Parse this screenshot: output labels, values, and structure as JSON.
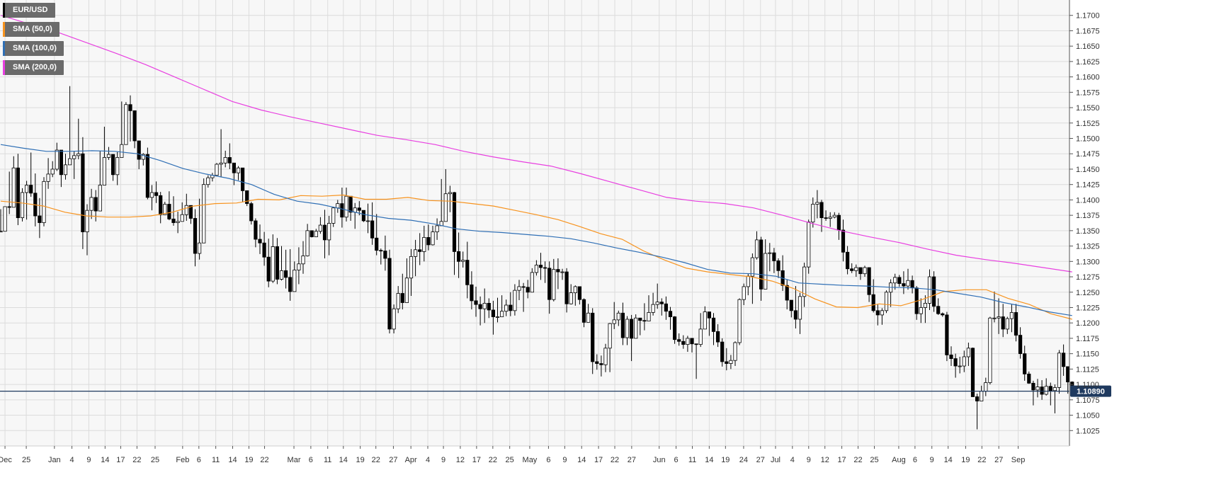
{
  "legend": {
    "symbol": "EUR/USD",
    "sma50": "SMA (50,0)",
    "sma100": "SMA (100,0)",
    "sma200": "SMA (200,0)"
  },
  "colors": {
    "background": "#f7f7f7",
    "grid": "#dcdcdc",
    "bull_body": "#ffffff",
    "bear_body": "#000000",
    "candle_outline": "#000000",
    "sma50": "#f7931e",
    "sma100": "#2f6fb5",
    "sma200": "#e83fe0",
    "price_line": "#1f3a5f"
  },
  "chart_data": {
    "type": "candlestick",
    "symbol": "EUR/USD",
    "y_range": [
      1.1,
      1.1725
    ],
    "y_ticks": [
      "1.1700",
      "1.1675",
      "1.1650",
      "1.1625",
      "1.1600",
      "1.1575",
      "1.1550",
      "1.1525",
      "1.1500",
      "1.1475",
      "1.1450",
      "1.1425",
      "1.1400",
      "1.1375",
      "1.1350",
      "1.1325",
      "1.1300",
      "1.1275",
      "1.1250",
      "1.1225",
      "1.1200",
      "1.1175",
      "1.1150",
      "1.1125",
      "1.1100",
      "1.1075",
      "1.1050",
      "1.1025"
    ],
    "x_labels": [
      "Dec",
      "25",
      "Jan",
      "4",
      "9",
      "14",
      "17",
      "22",
      "25",
      "Feb",
      "6",
      "11",
      "14",
      "19",
      "22",
      "Mar",
      "6",
      "11",
      "14",
      "19",
      "22",
      "27",
      "Apr",
      "4",
      "9",
      "12",
      "17",
      "22",
      "25",
      "May",
      "6",
      "9",
      "14",
      "17",
      "22",
      "27",
      "Jun",
      "6",
      "11",
      "14",
      "19",
      "24",
      "27",
      "Jul",
      "4",
      "9",
      "12",
      "17",
      "22",
      "25",
      "Aug",
      "6",
      "9",
      "14",
      "19",
      "22",
      "27",
      "Sep"
    ],
    "last_price": "1.10890",
    "candles": [
      [
        1.1385,
        1.1378,
        1.1349
      ],
      [
        1.1382,
        1.1368,
        1.1389
      ],
      [
        1.1446,
        1.1377,
        1.1388
      ],
      [
        1.1471,
        1.1388,
        1.1452
      ],
      [
        1.1475,
        1.1359,
        1.1371
      ],
      [
        1.1419,
        1.1365,
        1.1412
      ],
      [
        1.1431,
        1.1368,
        1.1424
      ],
      [
        1.1477,
        1.1405,
        1.1411
      ],
      [
        1.1443,
        1.1357,
        1.1374
      ],
      [
        1.1403,
        1.1338,
        1.1363
      ],
      [
        1.1437,
        1.1357,
        1.143
      ],
      [
        1.1468,
        1.1418,
        1.1442
      ],
      [
        1.1463,
        1.1437,
        1.145
      ],
      [
        1.1493,
        1.1447,
        1.1481
      ],
      [
        1.1465,
        1.1421,
        1.1441
      ],
      [
        1.1475,
        1.1433,
        1.1457
      ],
      [
        1.1585,
        1.1462,
        1.1467
      ],
      [
        1.1479,
        1.1434,
        1.1472
      ],
      [
        1.1532,
        1.1466,
        1.1475
      ],
      [
        1.1502,
        1.132,
        1.1348
      ],
      [
        1.1393,
        1.131,
        1.1383
      ],
      [
        1.1418,
        1.1369,
        1.1404
      ],
      [
        1.1416,
        1.1365,
        1.1382
      ],
      [
        1.148,
        1.142,
        1.1424
      ],
      [
        1.1519,
        1.1444,
        1.1469
      ],
      [
        1.1486,
        1.1465,
        1.1474
      ],
      [
        1.1473,
        1.1431,
        1.1441
      ],
      [
        1.1478,
        1.1424,
        1.1469
      ],
      [
        1.156,
        1.1471,
        1.149
      ],
      [
        1.1559,
        1.1538,
        1.1555
      ],
      [
        1.157,
        1.1495,
        1.1545
      ],
      [
        1.1541,
        1.1484,
        1.1496
      ],
      [
        1.1496,
        1.145,
        1.1466
      ],
      [
        1.1476,
        1.1456,
        1.1474
      ],
      [
        1.1485,
        1.1401,
        1.1404
      ],
      [
        1.1424,
        1.1383,
        1.1412
      ],
      [
        1.143,
        1.1395,
        1.1407
      ],
      [
        1.1413,
        1.1362,
        1.1376
      ],
      [
        1.1397,
        1.1378,
        1.1393
      ],
      [
        1.1414,
        1.1367,
        1.1369
      ],
      [
        1.1406,
        1.1358,
        1.1363
      ],
      [
        1.1381,
        1.1346,
        1.1365
      ],
      [
        1.1396,
        1.1368,
        1.1376
      ],
      [
        1.141,
        1.1366,
        1.1391
      ],
      [
        1.1388,
        1.1361,
        1.137
      ],
      [
        1.1385,
        1.1292,
        1.1313
      ],
      [
        1.1402,
        1.1303,
        1.133
      ],
      [
        1.1435,
        1.138,
        1.1425
      ],
      [
        1.144,
        1.142,
        1.1436
      ],
      [
        1.1444,
        1.143,
        1.144
      ],
      [
        1.146,
        1.145,
        1.1458
      ],
      [
        1.1515,
        1.1437,
        1.146
      ],
      [
        1.148,
        1.1453,
        1.1469
      ],
      [
        1.1492,
        1.145,
        1.146
      ],
      [
        1.1451,
        1.1424,
        1.1444
      ],
      [
        1.1455,
        1.1432,
        1.1452
      ],
      [
        1.1439,
        1.1396,
        1.1415
      ],
      [
        1.1413,
        1.139,
        1.1394
      ],
      [
        1.1397,
        1.136,
        1.1366
      ],
      [
        1.137,
        1.1323,
        1.1336
      ],
      [
        1.136,
        1.1312,
        1.133
      ],
      [
        1.1348,
        1.1293,
        1.1307
      ],
      [
        1.1337,
        1.1258,
        1.1268
      ],
      [
        1.1344,
        1.1265,
        1.1324
      ],
      [
        1.1338,
        1.1263,
        1.1271
      ],
      [
        1.1325,
        1.1269,
        1.1285
      ],
      [
        1.1319,
        1.1256,
        1.1274
      ],
      [
        1.132,
        1.1236,
        1.1251
      ],
      [
        1.13,
        1.1256,
        1.1286
      ],
      [
        1.1323,
        1.1263,
        1.1296
      ],
      [
        1.1333,
        1.128,
        1.1309
      ],
      [
        1.1361,
        1.1308,
        1.135
      ],
      [
        1.1346,
        1.1339,
        1.134
      ],
      [
        1.1353,
        1.134,
        1.1349
      ],
      [
        1.1372,
        1.1345,
        1.1359
      ],
      [
        1.1384,
        1.1305,
        1.1335
      ],
      [
        1.1374,
        1.131,
        1.1362
      ],
      [
        1.1389,
        1.1356,
        1.1387
      ],
      [
        1.14,
        1.1379,
        1.1394
      ],
      [
        1.142,
        1.1355,
        1.1372
      ],
      [
        1.142,
        1.1365,
        1.1406
      ],
      [
        1.1406,
        1.1366,
        1.138
      ],
      [
        1.1395,
        1.1353,
        1.1387
      ],
      [
        1.1398,
        1.1375,
        1.1383
      ],
      [
        1.138,
        1.1364,
        1.1366
      ],
      [
        1.1394,
        1.1346,
        1.1366
      ],
      [
        1.1396,
        1.1327,
        1.1338
      ],
      [
        1.1377,
        1.131,
        1.1318
      ],
      [
        1.1321,
        1.1295,
        1.1317
      ],
      [
        1.1342,
        1.1285,
        1.1305
      ],
      [
        1.1319,
        1.1183,
        1.119
      ],
      [
        1.123,
        1.1183,
        1.1223
      ],
      [
        1.126,
        1.1216,
        1.1248
      ],
      [
        1.128,
        1.1222,
        1.1233
      ],
      [
        1.1305,
        1.1238,
        1.1273
      ],
      [
        1.132,
        1.1244,
        1.1308
      ],
      [
        1.1335,
        1.1276,
        1.1319
      ],
      [
        1.1346,
        1.1294,
        1.1316
      ],
      [
        1.1358,
        1.13,
        1.1339
      ],
      [
        1.136,
        1.1318,
        1.1327
      ],
      [
        1.1358,
        1.1326,
        1.1348
      ],
      [
        1.137,
        1.1335,
        1.1358
      ],
      [
        1.1434,
        1.1358,
        1.1365
      ],
      [
        1.145,
        1.1395,
        1.141
      ],
      [
        1.1423,
        1.138,
        1.1412
      ],
      [
        1.1413,
        1.1278,
        1.1316
      ],
      [
        1.1347,
        1.1273,
        1.13
      ],
      [
        1.1316,
        1.129,
        1.1302
      ],
      [
        1.1332,
        1.124,
        1.1262
      ],
      [
        1.1284,
        1.1222,
        1.1236
      ],
      [
        1.1259,
        1.121,
        1.123
      ],
      [
        1.1243,
        1.1196,
        1.1223
      ],
      [
        1.1256,
        1.12,
        1.1232
      ],
      [
        1.124,
        1.1208,
        1.1221
      ],
      [
        1.1236,
        1.1181,
        1.121
      ],
      [
        1.1241,
        1.1201,
        1.121
      ],
      [
        1.1245,
        1.121,
        1.1219
      ],
      [
        1.1238,
        1.1211,
        1.1229
      ],
      [
        1.125,
        1.1211,
        1.122
      ],
      [
        1.1263,
        1.1212,
        1.1253
      ],
      [
        1.127,
        1.1237,
        1.1259
      ],
      [
        1.1265,
        1.1218,
        1.1258
      ],
      [
        1.127,
        1.124,
        1.125
      ],
      [
        1.1289,
        1.1262,
        1.1282
      ],
      [
        1.1302,
        1.1277,
        1.1294
      ],
      [
        1.1314,
        1.127,
        1.129
      ],
      [
        1.13,
        1.1265,
        1.1289
      ],
      [
        1.13,
        1.1215,
        1.1238
      ],
      [
        1.1304,
        1.1235,
        1.1287
      ],
      [
        1.1305,
        1.1255,
        1.1283
      ],
      [
        1.1288,
        1.127,
        1.1283
      ],
      [
        1.1289,
        1.1217,
        1.1231
      ],
      [
        1.1263,
        1.123,
        1.1249
      ],
      [
        1.1261,
        1.1228,
        1.1259
      ],
      [
        1.1258,
        1.123,
        1.1238
      ],
      [
        1.124,
        1.1193,
        1.1201
      ],
      [
        1.1231,
        1.1208,
        1.1216
      ],
      [
        1.1224,
        1.1117,
        1.1137
      ],
      [
        1.1149,
        1.1124,
        1.1134
      ],
      [
        1.1147,
        1.1113,
        1.1132
      ],
      [
        1.1166,
        1.112,
        1.1159
      ],
      [
        1.12,
        1.112,
        1.1199
      ],
      [
        1.1234,
        1.119,
        1.1205
      ],
      [
        1.122,
        1.1195,
        1.1216
      ],
      [
        1.1233,
        1.1164,
        1.1176
      ],
      [
        1.1211,
        1.1164,
        1.1206
      ],
      [
        1.1213,
        1.1138,
        1.1175
      ],
      [
        1.1214,
        1.1176,
        1.1208
      ],
      [
        1.1207,
        1.118,
        1.1204
      ],
      [
        1.1232,
        1.1188,
        1.1203
      ],
      [
        1.1245,
        1.1206,
        1.1217
      ],
      [
        1.1249,
        1.1212,
        1.123
      ],
      [
        1.1264,
        1.1223,
        1.1234
      ],
      [
        1.124,
        1.1212,
        1.1231
      ],
      [
        1.1243,
        1.1205,
        1.1219
      ],
      [
        1.1226,
        1.1189,
        1.121
      ],
      [
        1.1211,
        1.1166,
        1.1173
      ],
      [
        1.1183,
        1.1163,
        1.117
      ],
      [
        1.118,
        1.1158,
        1.1165
      ],
      [
        1.1179,
        1.1153,
        1.1175
      ],
      [
        1.1171,
        1.1152,
        1.1166
      ],
      [
        1.1166,
        1.1109,
        1.1165
      ],
      [
        1.1216,
        1.1161,
        1.119
      ],
      [
        1.1227,
        1.1193,
        1.1218
      ],
      [
        1.1218,
        1.1179,
        1.1208
      ],
      [
        1.1216,
        1.1164,
        1.1186
      ],
      [
        1.1198,
        1.1161,
        1.1169
      ],
      [
        1.1175,
        1.1129,
        1.1137
      ],
      [
        1.1159,
        1.1123,
        1.1134
      ],
      [
        1.1148,
        1.1125,
        1.1139
      ],
      [
        1.117,
        1.113,
        1.1168
      ],
      [
        1.124,
        1.1164,
        1.1238
      ],
      [
        1.1264,
        1.1229,
        1.1259
      ],
      [
        1.128,
        1.1245,
        1.1276
      ],
      [
        1.1313,
        1.1231,
        1.1306
      ],
      [
        1.1349,
        1.1303,
        1.1335
      ],
      [
        1.134,
        1.1236,
        1.1255
      ],
      [
        1.1336,
        1.1255,
        1.1313
      ],
      [
        1.133,
        1.1284,
        1.1314
      ],
      [
        1.1322,
        1.1281,
        1.1301
      ],
      [
        1.1305,
        1.1273,
        1.1285
      ],
      [
        1.131,
        1.1252,
        1.1261
      ],
      [
        1.127,
        1.1222,
        1.1237
      ],
      [
        1.1232,
        1.1209,
        1.122
      ],
      [
        1.126,
        1.1191,
        1.1206
      ],
      [
        1.1249,
        1.1182,
        1.1243
      ],
      [
        1.1298,
        1.1226,
        1.1291
      ],
      [
        1.1368,
        1.128,
        1.1364
      ],
      [
        1.1404,
        1.1355,
        1.1393
      ],
      [
        1.1416,
        1.137,
        1.1396
      ],
      [
        1.14,
        1.1348,
        1.1371
      ],
      [
        1.1383,
        1.1366,
        1.137
      ],
      [
        1.138,
        1.1356,
        1.1372
      ],
      [
        1.138,
        1.137,
        1.1375
      ],
      [
        1.1379,
        1.1335,
        1.1351
      ],
      [
        1.1368,
        1.13,
        1.1315
      ],
      [
        1.1325,
        1.1279,
        1.1288
      ],
      [
        1.1297,
        1.1281,
        1.1285
      ],
      [
        1.1295,
        1.1275,
        1.129
      ],
      [
        1.129,
        1.127,
        1.128
      ],
      [
        1.1293,
        1.1275,
        1.129
      ],
      [
        1.1286,
        1.1234,
        1.1246
      ],
      [
        1.1271,
        1.1217,
        1.122
      ],
      [
        1.123,
        1.1196,
        1.1213
      ],
      [
        1.1224,
        1.1197,
        1.122
      ],
      [
        1.1253,
        1.1216,
        1.125
      ],
      [
        1.1271,
        1.1226,
        1.1265
      ],
      [
        1.128,
        1.1254,
        1.1274
      ],
      [
        1.1278,
        1.1259,
        1.1264
      ],
      [
        1.1284,
        1.1247,
        1.126
      ],
      [
        1.1288,
        1.1254,
        1.1269
      ],
      [
        1.1277,
        1.1248,
        1.1257
      ],
      [
        1.126,
        1.1205,
        1.1215
      ],
      [
        1.124,
        1.12,
        1.1225
      ],
      [
        1.1245,
        1.12,
        1.1232
      ],
      [
        1.1287,
        1.1221,
        1.1275
      ],
      [
        1.1284,
        1.1218,
        1.1227
      ],
      [
        1.124,
        1.1213,
        1.1215
      ],
      [
        1.1217,
        1.121,
        1.1213
      ],
      [
        1.1218,
        1.1138,
        1.1148
      ],
      [
        1.1162,
        1.113,
        1.1142
      ],
      [
        1.115,
        1.1111,
        1.113
      ],
      [
        1.1145,
        1.1118,
        1.113
      ],
      [
        1.1155,
        1.112,
        1.1145
      ],
      [
        1.1168,
        1.113,
        1.1159
      ],
      [
        1.116,
        1.1081,
        1.108
      ],
      [
        1.1085,
        1.1027,
        1.1073
      ],
      [
        1.1098,
        1.1076,
        1.1089
      ],
      [
        1.1111,
        1.1081,
        1.1103
      ],
      [
        1.121,
        1.11,
        1.1208
      ],
      [
        1.1251,
        1.1201,
        1.1208
      ],
      [
        1.124,
        1.1182,
        1.121
      ],
      [
        1.1231,
        1.1177,
        1.119
      ],
      [
        1.121,
        1.1182,
        1.1207
      ],
      [
        1.123,
        1.1185,
        1.1217
      ],
      [
        1.1231,
        1.117,
        1.118
      ],
      [
        1.1193,
        1.1142,
        1.115
      ],
      [
        1.1163,
        1.1106,
        1.1117
      ],
      [
        1.1121,
        1.1101,
        1.1102
      ],
      [
        1.1106,
        1.1066,
        1.1091
      ],
      [
        1.1109,
        1.1079,
        1.1096
      ],
      [
        1.1107,
        1.1075,
        1.1084
      ],
      [
        1.111,
        1.1082,
        1.1097
      ],
      [
        1.1103,
        1.1066,
        1.109
      ],
      [
        1.11,
        1.1053,
        1.1095
      ],
      [
        1.1156,
        1.1085,
        1.1151
      ],
      [
        1.1165,
        1.1114,
        1.1129
      ],
      [
        1.1129,
        1.1085,
        1.1104
      ],
      [
        1.1105,
        1.1086,
        1.109
      ]
    ],
    "sma50": [
      1.1398,
      1.1395,
      1.139,
      1.138,
      1.1374,
      1.1372,
      1.1372,
      1.1374,
      1.138,
      1.139,
      1.1394,
      1.1395,
      1.1401,
      1.14,
      1.1407,
      1.1406,
      1.1408,
      1.1401,
      1.1401,
      1.1404,
      1.1399,
      1.1398,
      1.1394,
      1.139,
      1.1383,
      1.1376,
      1.1368,
      1.1357,
      1.1345,
      1.1336,
      1.1317,
      1.1302,
      1.1289,
      1.1283,
      1.1279,
      1.1275,
      1.1268,
      1.1256,
      1.1239,
      1.1226,
      1.1225,
      1.1231,
      1.1228,
      1.1238,
      1.1251,
      1.1254,
      1.1254,
      1.124,
      1.123,
      1.1215,
      1.1206
    ],
    "sma100": [
      1.149,
      1.1484,
      1.1479,
      1.1479,
      1.148,
      1.1479,
      1.1475,
      1.1464,
      1.1451,
      1.1442,
      1.1435,
      1.1425,
      1.1409,
      1.1398,
      1.1393,
      1.1385,
      1.1376,
      1.137,
      1.1367,
      1.1361,
      1.1353,
      1.1349,
      1.1347,
      1.1344,
      1.1341,
      1.1337,
      1.133,
      1.1322,
      1.1315,
      1.1307,
      1.1298,
      1.1287,
      1.1281,
      1.128,
      1.1276,
      1.1265,
      1.1263,
      1.1261,
      1.126,
      1.1258,
      1.1257,
      1.1254,
      1.1248,
      1.1242,
      1.1233,
      1.1226,
      1.1218,
      1.1212
    ],
    "sma200": [
      1.17,
      1.1686,
      1.1672,
      1.1655,
      1.1638,
      1.162,
      1.16,
      1.158,
      1.156,
      1.1546,
      1.1535,
      1.1525,
      1.1515,
      1.1505,
      1.1498,
      1.149,
      1.1479,
      1.147,
      1.1462,
      1.1455,
      1.1443,
      1.143,
      1.1417,
      1.1404,
      1.1398,
      1.1394,
      1.1387,
      1.1375,
      1.1362,
      1.135,
      1.134,
      1.1331,
      1.132,
      1.131,
      1.1303,
      1.1297,
      1.129,
      1.1283
    ]
  }
}
